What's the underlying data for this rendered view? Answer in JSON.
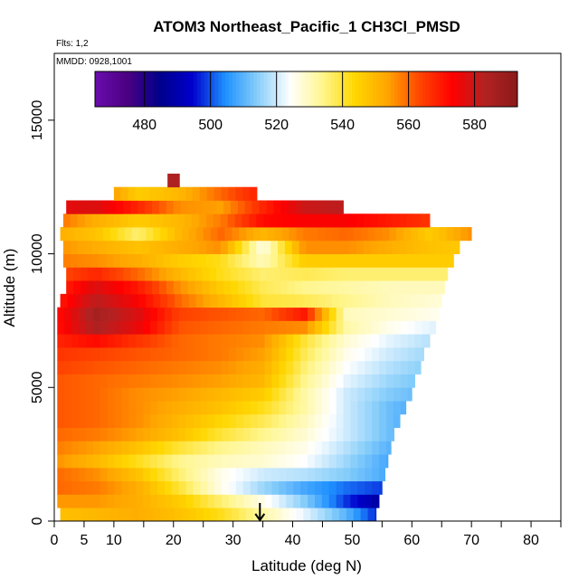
{
  "chart_data": {
    "type": "heatmap",
    "title": "ATOM3 Northeast_Pacific_1 CH3Cl_PMSD",
    "flights_label": "Flts: 1,2",
    "dates_label": "MMDD: 0928,1001",
    "xlabel": "Latitude (deg N)",
    "ylabel": "Altitude (m)",
    "xlim": [
      0,
      85
    ],
    "ylim": [
      0,
      17500
    ],
    "x_ticks": [
      0,
      5,
      10,
      20,
      30,
      40,
      50,
      60,
      70,
      80
    ],
    "x_tick_labels": [
      "0",
      "5",
      "10",
      "20",
      "30",
      "40",
      "50",
      "60",
      "70",
      "80"
    ],
    "x_minor_ticks": [
      15,
      25,
      35,
      45,
      55,
      65,
      75,
      85
    ],
    "y_ticks": [
      0,
      5000,
      10000,
      15000
    ],
    "y_tick_labels": [
      "0",
      "5000",
      "10000",
      "15000"
    ],
    "colorbar": {
      "min": 465,
      "max": 593,
      "ticks": [
        480,
        500,
        520,
        540,
        560,
        580
      ],
      "tick_labels": [
        "480",
        "500",
        "520",
        "540",
        "560",
        "580"
      ],
      "colors": [
        "#6a0dad",
        "#4b0082",
        "#00008b",
        "#0000cd",
        "#1e90ff",
        "#87cefa",
        "#ffffff",
        "#fff68f",
        "#ffd700",
        "#ffa500",
        "#ff4500",
        "#ff0000",
        "#b22222",
        "#8b1a1a"
      ]
    },
    "marker_arrow_latitude": 34.5,
    "rows": [
      {
        "alt": 250,
        "lat_min": 1,
        "lat_max": 54,
        "values": [
          548,
          550,
          552,
          548,
          542,
          532,
          522,
          510,
          492,
          478,
          470
        ]
      },
      {
        "alt": 750,
        "lat_min": 0.5,
        "lat_max": 54.5,
        "values": [
          555,
          555,
          552,
          546,
          536,
          526,
          514,
          498,
          485,
          480,
          478
        ]
      },
      {
        "alt": 1250,
        "lat_min": 0.5,
        "lat_max": 55,
        "values": [
          560,
          558,
          552,
          540,
          526,
          516,
          508,
          502,
          498,
          494,
          490
        ]
      },
      {
        "alt": 1750,
        "lat_min": 0.5,
        "lat_max": 55.5,
        "values": [
          560,
          556,
          548,
          536,
          526,
          520,
          518,
          514,
          508,
          500,
          492
        ]
      },
      {
        "alt": 2250,
        "lat_min": 0.5,
        "lat_max": 56,
        "values": [
          556,
          550,
          542,
          534,
          530,
          528,
          524,
          516,
          508,
          500,
          494
        ]
      },
      {
        "alt": 2750,
        "lat_min": 0.5,
        "lat_max": 56.5,
        "values": [
          558,
          554,
          548,
          540,
          534,
          530,
          526,
          518,
          510,
          502,
          496
        ]
      },
      {
        "alt": 3250,
        "lat_min": 0.5,
        "lat_max": 57,
        "values": [
          560,
          558,
          554,
          548,
          540,
          534,
          528,
          520,
          512,
          504,
          498
        ]
      },
      {
        "alt": 3750,
        "lat_min": 0.5,
        "lat_max": 58,
        "values": [
          562,
          560,
          556,
          550,
          544,
          538,
          530,
          520,
          512,
          504,
          500
        ]
      },
      {
        "alt": 4250,
        "lat_min": 0.5,
        "lat_max": 59,
        "values": [
          562,
          560,
          556,
          552,
          548,
          542,
          532,
          520,
          512,
          506,
          502
        ]
      },
      {
        "alt": 4750,
        "lat_min": 0.5,
        "lat_max": 60,
        "values": [
          562,
          560,
          556,
          554,
          550,
          546,
          532,
          520,
          514,
          510,
          506
        ]
      },
      {
        "alt": 5250,
        "lat_min": 0.5,
        "lat_max": 60.5,
        "values": [
          562,
          560,
          558,
          556,
          554,
          550,
          534,
          522,
          516,
          512,
          508
        ]
      },
      {
        "alt": 5750,
        "lat_min": 0.5,
        "lat_max": 61.5,
        "values": [
          564,
          562,
          560,
          558,
          556,
          552,
          536,
          524,
          518,
          514,
          510
        ]
      },
      {
        "alt": 6250,
        "lat_min": 0.5,
        "lat_max": 62,
        "values": [
          566,
          564,
          562,
          560,
          558,
          554,
          538,
          526,
          520,
          516,
          512
        ]
      },
      {
        "alt": 6750,
        "lat_min": 0.5,
        "lat_max": 63,
        "values": [
          568,
          572,
          566,
          560,
          558,
          556,
          540,
          528,
          522,
          518,
          514
        ]
      },
      {
        "alt": 7250,
        "lat_min": 0.5,
        "lat_max": 64,
        "values": [
          570,
          584,
          576,
          562,
          560,
          558,
          556,
          532,
          526,
          522,
          518
        ]
      },
      {
        "alt": 7750,
        "lat_min": 0.5,
        "lat_max": 64.5,
        "values": [
          570,
          586,
          578,
          564,
          562,
          560,
          570,
          530,
          528,
          526,
          524
        ]
      },
      {
        "alt": 8250,
        "lat_min": 1,
        "lat_max": 65,
        "values": [
          568,
          582,
          574,
          560,
          550,
          540,
          538,
          534,
          530,
          528,
          526
        ]
      },
      {
        "alt": 8750,
        "lat_min": 2,
        "lat_max": 65.5,
        "values": [
          566,
          578,
          570,
          556,
          546,
          538,
          534,
          532,
          530,
          530,
          530
        ]
      },
      {
        "alt": 9250,
        "lat_min": 2,
        "lat_max": 66,
        "values": [
          562,
          568,
          560,
          550,
          542,
          536,
          538,
          536,
          536,
          536,
          536
        ]
      },
      {
        "alt": 9750,
        "lat_min": 1.5,
        "lat_max": 67,
        "values": [
          558,
          556,
          552,
          546,
          542,
          530,
          546,
          546,
          546,
          546,
          546
        ]
      },
      {
        "alt": 10250,
        "lat_min": 1.5,
        "lat_max": 68,
        "values": [
          556,
          552,
          548,
          552,
          556,
          526,
          556,
          556,
          552,
          548,
          546
        ]
      },
      {
        "alt": 10750,
        "lat_min": 1,
        "lat_max": 70,
        "values": [
          552,
          548,
          536,
          550,
          560,
          550,
          558,
          560,
          556,
          546,
          556
        ]
      },
      {
        "alt": 11250,
        "lat_min": 1.5,
        "lat_max": 63,
        "values": [
          560,
          552,
          546,
          550,
          558,
          572,
          574,
          574,
          570,
          566,
          562
        ]
      },
      {
        "alt": 11750,
        "lat_min": 2,
        "lat_max": 48.5,
        "values": [
          576,
          578,
          568,
          556,
          554,
          568,
          580,
          582,
          580,
          578,
          576
        ]
      },
      {
        "alt": 12250,
        "lat_min": 10,
        "lat_max": 34,
        "values": [
          568,
          560,
          546,
          550,
          560,
          570,
          574,
          576,
          576,
          576,
          576
        ]
      },
      {
        "alt": 12750,
        "lat_min": 19,
        "lat_max": 21,
        "values": [
          584,
          584,
          584,
          584,
          584,
          584,
          584,
          584,
          584,
          584,
          584
        ]
      }
    ]
  }
}
